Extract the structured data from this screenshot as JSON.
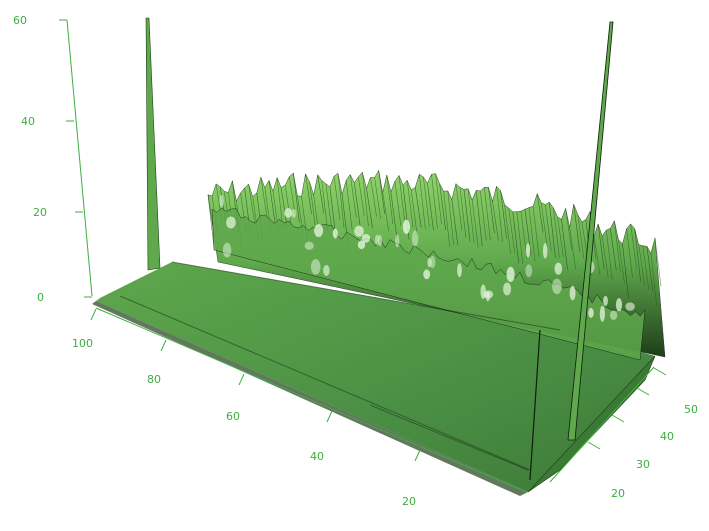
{
  "chart_data": {
    "type": "surface3d",
    "title": "",
    "axis_color": "#3fae3f",
    "surface_colors": {
      "base": "#4a8e44",
      "shadow": "#1f3d1a",
      "mid": "#5fa84c",
      "high": "#8fd46a",
      "highlight": "#e8f7e0",
      "ridge_line": "#0d1f0a"
    },
    "axes": {
      "z": {
        "label": "",
        "ticks": [
          "0",
          "20",
          "40",
          "60"
        ],
        "range": [
          0,
          60
        ]
      },
      "x": {
        "label": "",
        "ticks": [
          "100",
          "80",
          "60",
          "40",
          "20"
        ],
        "range": [
          10,
          100
        ]
      },
      "y": {
        "label": "",
        "ticks": [
          "20",
          "30",
          "40",
          "50"
        ],
        "range": [
          15,
          55
        ]
      }
    },
    "features": {
      "spike_near": {
        "x": 100,
        "y": 15,
        "z": 60
      },
      "spike_far": {
        "x": 10,
        "y": 55,
        "z": 60
      },
      "ridge_plateau_z": 28,
      "ridge_secondary_z": 16,
      "floor_z": 0
    }
  }
}
